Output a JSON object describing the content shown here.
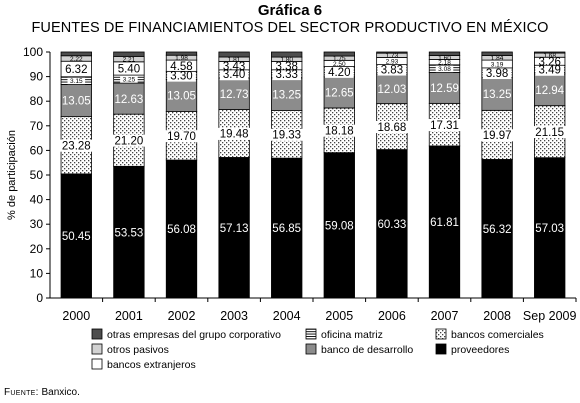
{
  "figure_label": "Gráfica 6",
  "source": {
    "label": "Fuente:",
    "text": "Banxico."
  },
  "colors": {
    "proveedores": "#000000",
    "bancos_comerciales": "#ffffff",
    "banco_de_desarrollo": "#8c8c8c",
    "bancos_extranjeros": "#ffffff",
    "otros_pasivos": "#d2d2d2",
    "oficina_matriz": "#ffffff",
    "otras_empresas": "#4d4d4d"
  },
  "chart_data": {
    "type": "bar",
    "stacked": true,
    "title": "FUENTES DE FINANCIAMIENTOS DEL SECTOR PRODUCTIVO EN MÉXICO",
    "ylabel": "% de participación",
    "ylim": [
      0,
      100
    ],
    "yticks": [
      0,
      10,
      20,
      30,
      40,
      50,
      60,
      70,
      80,
      90,
      100
    ],
    "categories": [
      "2000",
      "2001",
      "2002",
      "2003",
      "2004",
      "2005",
      "2006",
      "2007",
      "2008",
      "Sep 2009"
    ],
    "series": [
      {
        "key": "proveedores",
        "name": "proveedores",
        "pattern": "solid-black",
        "values": [
          50.45,
          53.53,
          56.08,
          57.13,
          56.85,
          59.08,
          60.33,
          61.81,
          56.32,
          57.03
        ],
        "labels": [
          "50.45",
          "53.53",
          "56.08",
          "57.13",
          "56.85",
          "59.08",
          "60.33",
          "61.81",
          "56.32",
          "57.03"
        ]
      },
      {
        "key": "bancos_comerciales",
        "name": "bancos comerciales",
        "pattern": "dots",
        "values": [
          23.28,
          21.2,
          19.7,
          19.48,
          19.33,
          18.18,
          18.68,
          17.31,
          19.97,
          21.15
        ],
        "labels": [
          "23.28",
          "21.20",
          "19.70",
          "19.48",
          "19.33",
          "18.18",
          "18.68",
          "17.31",
          "19.97",
          "21.15"
        ]
      },
      {
        "key": "banco_de_desarrollo",
        "name": "banco de desarrollo",
        "pattern": "gray",
        "values": [
          13.05,
          12.63,
          13.05,
          12.73,
          13.25,
          12.65,
          12.03,
          12.59,
          13.25,
          12.94
        ],
        "labels": [
          "13.05",
          "12.63",
          "13.05",
          "12.73",
          "13.25",
          "12.65",
          "12.03",
          "12.59",
          "13.25",
          "12.94"
        ]
      },
      {
        "key": "oficina_matriz",
        "name": "oficina matriz",
        "pattern": "hlines",
        "values": [
          3.15,
          3.25,
          3.3,
          3.4,
          3.33,
          4.2,
          3.83,
          3.08,
          3.98,
          3.49
        ],
        "labels": [
          "3.15",
          "3.25",
          "3.30",
          "3.40",
          "3.33",
          "4.20",
          "3.83",
          "3.08",
          "3.98",
          "3.49"
        ]
      },
      {
        "key": "bancos_extranjeros",
        "name": "bancos extranjeros",
        "pattern": "white",
        "values": [
          6.32,
          5.4,
          4.58,
          3.43,
          3.38,
          2.5,
          2.93,
          2.18,
          3.19,
          3.26
        ],
        "labels": [
          "6.32",
          "5.40",
          "4.58",
          "3.43",
          "3.38",
          "2.50",
          "2.93",
          "2.18",
          "3.19",
          "3.26"
        ]
      },
      {
        "key": "otros_pasivos",
        "name": "otros pasivos",
        "pattern": "lightgray",
        "values": [
          2.22,
          2.21,
          1.98,
          1.81,
          1.8,
          1.75,
          1.73,
          1.6,
          1.84,
          1.68
        ],
        "labels": [
          "2.22",
          "2.21",
          "1.98",
          "1.81",
          "1.80",
          "1.75",
          "1.73",
          "1.60",
          "1.84",
          "1.68"
        ]
      },
      {
        "key": "otras_empresas",
        "name": "otras empresas del grupo corporativo",
        "pattern": "darkgray",
        "values": [
          1.53,
          1.78,
          1.31,
          2.02,
          2.06,
          1.64,
          0.47,
          1.43,
          1.45,
          0.45
        ],
        "labels": [
          "",
          "",
          "",
          "",
          "",
          "",
          "",
          "",
          "",
          ""
        ]
      }
    ],
    "legend": {
      "placement": "bottom",
      "order": [
        "otras_empresas",
        "oficina_matriz",
        "bancos_comerciales",
        "otros_pasivos",
        "banco_de_desarrollo",
        "proveedores",
        "bancos_extranjeros"
      ]
    },
    "grid": false
  }
}
